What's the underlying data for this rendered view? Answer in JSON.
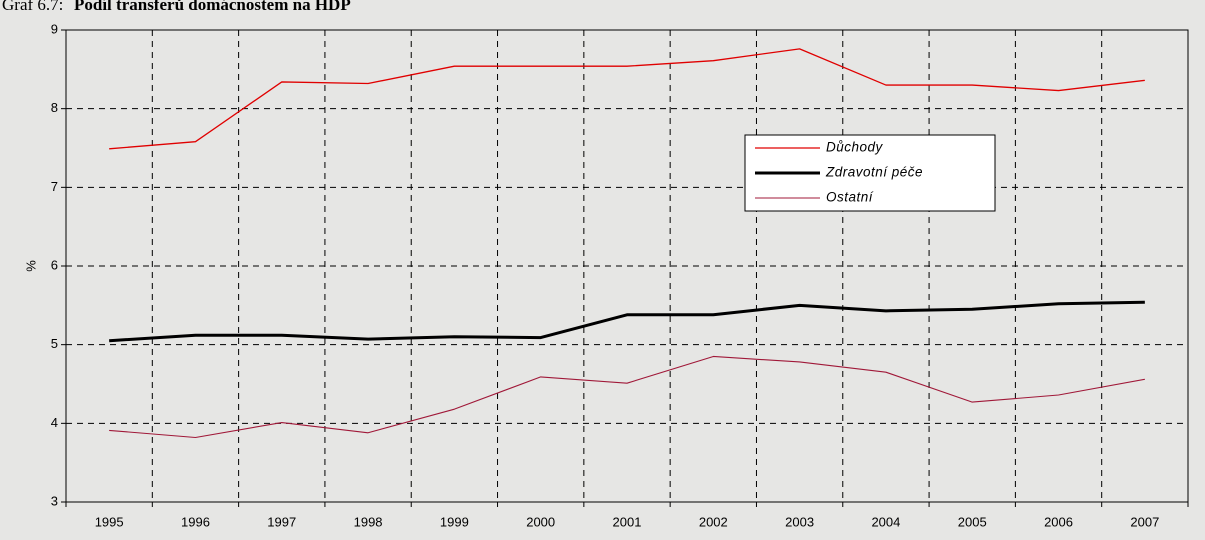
{
  "chart_data": {
    "type": "line",
    "title_prefix": "Graf 6.7:",
    "title": "Podíl transferů domácnostem na HDP",
    "y_label": "%",
    "categories": [
      "1995",
      "1996",
      "1997",
      "1998",
      "1999",
      "2000",
      "2001",
      "2002",
      "2003",
      "2004",
      "2005",
      "2006",
      "2007"
    ],
    "series": [
      {
        "name": "Důchody",
        "color": "#e00000",
        "width": 1.3,
        "values": [
          7.49,
          7.58,
          8.34,
          8.32,
          8.54,
          8.54,
          8.54,
          8.61,
          8.76,
          8.3,
          8.3,
          8.23,
          8.36
        ]
      },
      {
        "name": "Zdravotní péče",
        "color": "#000000",
        "width": 3,
        "values": [
          5.05,
          5.12,
          5.12,
          5.07,
          5.1,
          5.09,
          5.38,
          5.38,
          5.5,
          5.43,
          5.45,
          5.52,
          5.54
        ]
      },
      {
        "name": "Ostatní",
        "color": "#a01838",
        "width": 1.1,
        "values": [
          3.91,
          3.82,
          4.01,
          3.88,
          4.18,
          4.59,
          4.51,
          4.85,
          4.78,
          4.65,
          4.27,
          4.36,
          4.56
        ]
      }
    ],
    "ylim": [
      3,
      9
    ],
    "yticks": [
      3,
      4,
      5,
      6,
      7,
      8,
      9
    ],
    "grid": true
  }
}
